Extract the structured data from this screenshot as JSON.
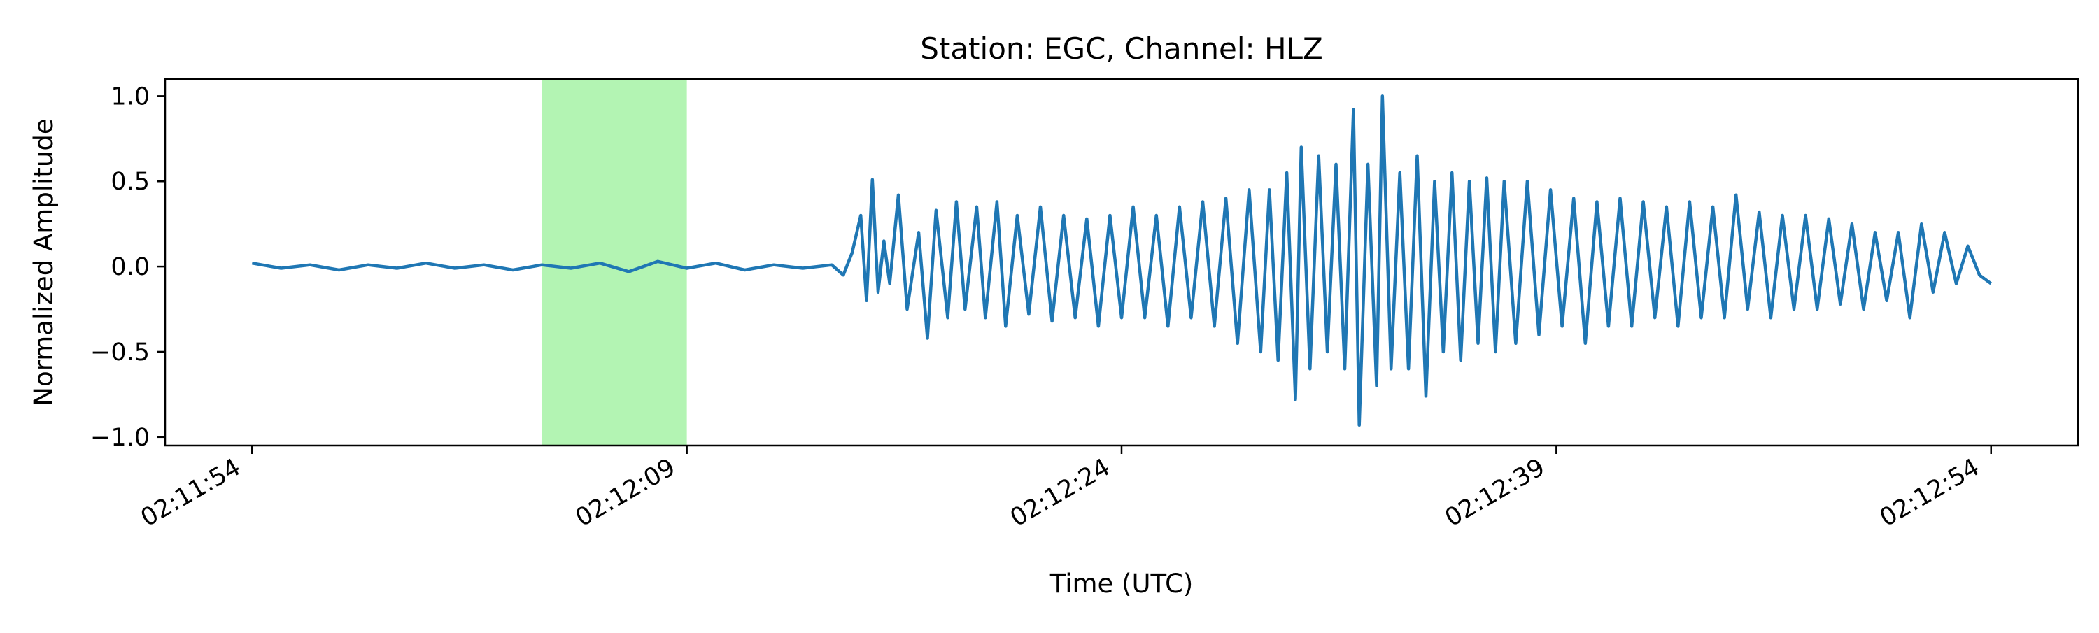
{
  "chart_data": {
    "type": "line",
    "title": "Station: EGC, Channel: HLZ",
    "xlabel": "Time (UTC)",
    "ylabel": "Normalized Amplitude",
    "x_unit": "seconds",
    "xlim": [
      "02:11:51",
      "02:12:57"
    ],
    "ylim": [
      -1.05,
      1.1
    ],
    "xticks": [
      {
        "value": "02:11:54",
        "label": "02:11:54"
      },
      {
        "value": "02:12:09",
        "label": "02:12:09"
      },
      {
        "value": "02:12:24",
        "label": "02:12:24"
      },
      {
        "value": "02:12:39",
        "label": "02:12:39"
      },
      {
        "value": "02:12:54",
        "label": "02:12:54"
      }
    ],
    "yticks": [
      {
        "value": 1.0,
        "label": "1.0"
      },
      {
        "value": 0.5,
        "label": "0.5"
      },
      {
        "value": 0.0,
        "label": "0.0"
      },
      {
        "value": -0.5,
        "label": "−0.5"
      },
      {
        "value": -1.0,
        "label": "−1.0"
      }
    ],
    "grid": false,
    "legend": "none",
    "highlight_window": {
      "start": "02:12:04",
      "end": "02:12:09",
      "color": "#b3f4b3"
    },
    "series": [
      {
        "color": "#1f77b4",
        "points": [
          [
            "02:11:54.0",
            0.02
          ],
          [
            "02:11:55.0",
            -0.01
          ],
          [
            "02:11:56.0",
            0.01
          ],
          [
            "02:11:57.0",
            -0.02
          ],
          [
            "02:11:58.0",
            0.01
          ],
          [
            "02:11:59.0",
            -0.01
          ],
          [
            "02:12:00.0",
            0.02
          ],
          [
            "02:12:01.0",
            -0.01
          ],
          [
            "02:12:02.0",
            0.01
          ],
          [
            "02:12:03.0",
            -0.02
          ],
          [
            "02:12:04.0",
            0.01
          ],
          [
            "02:12:05.0",
            -0.01
          ],
          [
            "02:12:06.0",
            0.02
          ],
          [
            "02:12:07.0",
            -0.03
          ],
          [
            "02:12:08.0",
            0.03
          ],
          [
            "02:12:09.0",
            -0.01
          ],
          [
            "02:12:10.0",
            0.02
          ],
          [
            "02:12:11.0",
            -0.02
          ],
          [
            "02:12:12.0",
            0.01
          ],
          [
            "02:12:13.0",
            -0.01
          ],
          [
            "02:12:14.0",
            0.01
          ],
          [
            "02:12:14.4",
            -0.05
          ],
          [
            "02:12:14.7",
            0.08
          ],
          [
            "02:12:15.0",
            0.3
          ],
          [
            "02:12:15.2",
            -0.2
          ],
          [
            "02:12:15.4",
            0.51
          ],
          [
            "02:12:15.6",
            -0.15
          ],
          [
            "02:12:15.8",
            0.15
          ],
          [
            "02:12:16.0",
            -0.1
          ],
          [
            "02:12:16.3",
            0.42
          ],
          [
            "02:12:16.6",
            -0.25
          ],
          [
            "02:12:17.0",
            0.2
          ],
          [
            "02:12:17.3",
            -0.42
          ],
          [
            "02:12:17.6",
            0.33
          ],
          [
            "02:12:18.0",
            -0.3
          ],
          [
            "02:12:18.3",
            0.38
          ],
          [
            "02:12:18.6",
            -0.25
          ],
          [
            "02:12:19.0",
            0.35
          ],
          [
            "02:12:19.3",
            -0.3
          ],
          [
            "02:12:19.7",
            0.38
          ],
          [
            "02:12:20.0",
            -0.35
          ],
          [
            "02:12:20.4",
            0.3
          ],
          [
            "02:12:20.8",
            -0.28
          ],
          [
            "02:12:21.2",
            0.35
          ],
          [
            "02:12:21.6",
            -0.32
          ],
          [
            "02:12:22.0",
            0.3
          ],
          [
            "02:12:22.4",
            -0.3
          ],
          [
            "02:12:22.8",
            0.28
          ],
          [
            "02:12:23.2",
            -0.35
          ],
          [
            "02:12:23.6",
            0.3
          ],
          [
            "02:12:24.0",
            -0.3
          ],
          [
            "02:12:24.4",
            0.35
          ],
          [
            "02:12:24.8",
            -0.3
          ],
          [
            "02:12:25.2",
            0.3
          ],
          [
            "02:12:25.6",
            -0.35
          ],
          [
            "02:12:26.0",
            0.35
          ],
          [
            "02:12:26.4",
            -0.3
          ],
          [
            "02:12:26.8",
            0.38
          ],
          [
            "02:12:27.2",
            -0.35
          ],
          [
            "02:12:27.6",
            0.4
          ],
          [
            "02:12:28.0",
            -0.45
          ],
          [
            "02:12:28.4",
            0.45
          ],
          [
            "02:12:28.8",
            -0.5
          ],
          [
            "02:12:29.1",
            0.45
          ],
          [
            "02:12:29.4",
            -0.55
          ],
          [
            "02:12:29.7",
            0.55
          ],
          [
            "02:12:30.0",
            -0.78
          ],
          [
            "02:12:30.2",
            0.7
          ],
          [
            "02:12:30.5",
            -0.6
          ],
          [
            "02:12:30.8",
            0.65
          ],
          [
            "02:12:31.1",
            -0.5
          ],
          [
            "02:12:31.4",
            0.6
          ],
          [
            "02:12:31.7",
            -0.6
          ],
          [
            "02:12:32.0",
            0.92
          ],
          [
            "02:12:32.2",
            -0.93
          ],
          [
            "02:12:32.5",
            0.6
          ],
          [
            "02:12:32.8",
            -0.7
          ],
          [
            "02:12:33.0",
            1.0
          ],
          [
            "02:12:33.3",
            -0.6
          ],
          [
            "02:12:33.6",
            0.55
          ],
          [
            "02:12:33.9",
            -0.6
          ],
          [
            "02:12:34.2",
            0.65
          ],
          [
            "02:12:34.5",
            -0.76
          ],
          [
            "02:12:34.8",
            0.5
          ],
          [
            "02:12:35.1",
            -0.5
          ],
          [
            "02:12:35.4",
            0.55
          ],
          [
            "02:12:35.7",
            -0.55
          ],
          [
            "02:12:36.0",
            0.5
          ],
          [
            "02:12:36.3",
            -0.45
          ],
          [
            "02:12:36.6",
            0.52
          ],
          [
            "02:12:36.9",
            -0.5
          ],
          [
            "02:12:37.2",
            0.5
          ],
          [
            "02:12:37.6",
            -0.45
          ],
          [
            "02:12:38.0",
            0.5
          ],
          [
            "02:12:38.4",
            -0.4
          ],
          [
            "02:12:38.8",
            0.45
          ],
          [
            "02:12:39.2",
            -0.35
          ],
          [
            "02:12:39.6",
            0.4
          ],
          [
            "02:12:40.0",
            -0.45
          ],
          [
            "02:12:40.4",
            0.38
          ],
          [
            "02:12:40.8",
            -0.35
          ],
          [
            "02:12:41.2",
            0.4
          ],
          [
            "02:12:41.6",
            -0.35
          ],
          [
            "02:12:42.0",
            0.38
          ],
          [
            "02:12:42.4",
            -0.3
          ],
          [
            "02:12:42.8",
            0.35
          ],
          [
            "02:12:43.2",
            -0.35
          ],
          [
            "02:12:43.6",
            0.38
          ],
          [
            "02:12:44.0",
            -0.3
          ],
          [
            "02:12:44.4",
            0.35
          ],
          [
            "02:12:44.8",
            -0.3
          ],
          [
            "02:12:45.2",
            0.42
          ],
          [
            "02:12:45.6",
            -0.25
          ],
          [
            "02:12:46.0",
            0.32
          ],
          [
            "02:12:46.4",
            -0.3
          ],
          [
            "02:12:46.8",
            0.3
          ],
          [
            "02:12:47.2",
            -0.25
          ],
          [
            "02:12:47.6",
            0.3
          ],
          [
            "02:12:48.0",
            -0.25
          ],
          [
            "02:12:48.4",
            0.28
          ],
          [
            "02:12:48.8",
            -0.22
          ],
          [
            "02:12:49.2",
            0.25
          ],
          [
            "02:12:49.6",
            -0.25
          ],
          [
            "02:12:50.0",
            0.2
          ],
          [
            "02:12:50.4",
            -0.2
          ],
          [
            "02:12:50.8",
            0.2
          ],
          [
            "02:12:51.2",
            -0.3
          ],
          [
            "02:12:51.6",
            0.25
          ],
          [
            "02:12:52.0",
            -0.15
          ],
          [
            "02:12:52.4",
            0.2
          ],
          [
            "02:12:52.8",
            -0.1
          ],
          [
            "02:12:53.2",
            0.12
          ],
          [
            "02:12:53.6",
            -0.05
          ],
          [
            "02:12:54.0",
            -0.1
          ]
        ]
      }
    ]
  }
}
